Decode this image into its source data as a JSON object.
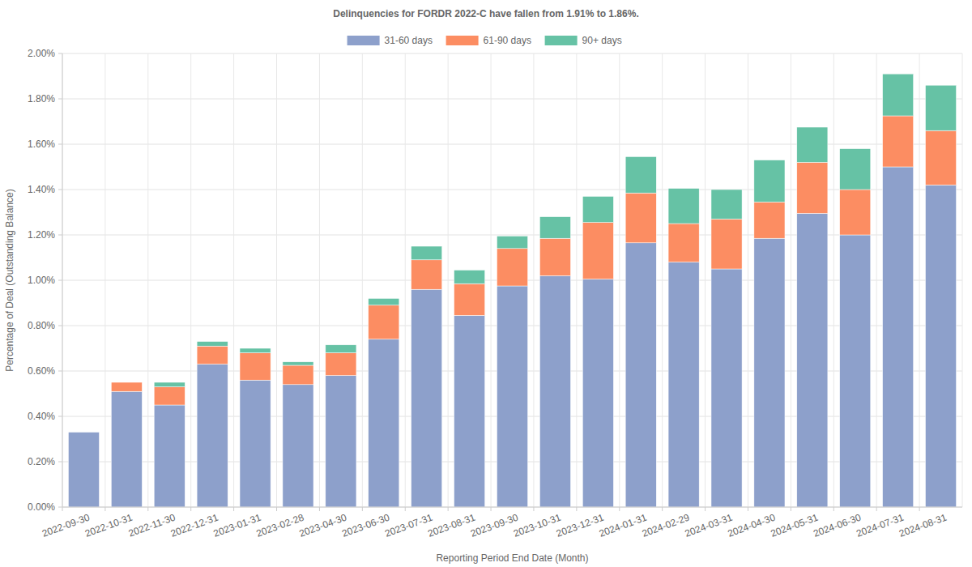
{
  "chart_data": {
    "type": "bar",
    "title": "Delinquencies for FORDR 2022-C have fallen from 1.91% to 1.86%.",
    "x_label": "Reporting Period End Date (Month)",
    "y_label": "Percentage of Deal (Outstanding Balance)",
    "categories": [
      "2022-09-30",
      "2022-10-31",
      "2022-11-30",
      "2022-12-31",
      "2023-01-31",
      "2023-02-28",
      "2023-04-30",
      "2023-06-30",
      "2023-07-31",
      "2023-08-31",
      "2023-09-30",
      "2023-10-31",
      "2023-12-31",
      "2024-01-31",
      "2024-02-29",
      "2024-03-31",
      "2024-04-30",
      "2024-05-31",
      "2024-06-30",
      "2024-07-31",
      "2024-08-31"
    ],
    "series": [
      {
        "name": "31-60 days",
        "color": "#8da0cb",
        "values": [
          0.33,
          0.51,
          0.45,
          0.63,
          0.56,
          0.54,
          0.58,
          0.74,
          0.96,
          0.845,
          0.975,
          1.02,
          1.005,
          1.165,
          1.08,
          1.05,
          1.185,
          1.295,
          1.2,
          1.5,
          1.42
        ]
      },
      {
        "name": "61-90 days",
        "color": "#fc8d62",
        "values": [
          0,
          0.04,
          0.08,
          0.08,
          0.12,
          0.085,
          0.1,
          0.15,
          0.13,
          0.14,
          0.165,
          0.165,
          0.25,
          0.22,
          0.17,
          0.22,
          0.16,
          0.225,
          0.2,
          0.225,
          0.24
        ]
      },
      {
        "name": "90+ days",
        "color": "#66c2a5",
        "values": [
          0,
          0,
          0.02,
          0.02,
          0.02,
          0.015,
          0.035,
          0.03,
          0.06,
          0.06,
          0.055,
          0.095,
          0.115,
          0.16,
          0.155,
          0.13,
          0.185,
          0.155,
          0.18,
          0.185,
          0.2
        ]
      }
    ],
    "stacked": true,
    "ylim": [
      0,
      2
    ],
    "yticks": [
      {
        "value": 0,
        "label": "0.00%"
      },
      {
        "value": 0.2,
        "label": "0.20%"
      },
      {
        "value": 0.4,
        "label": "0.40%"
      },
      {
        "value": 0.6,
        "label": "0.60%"
      },
      {
        "value": 0.8,
        "label": "0.80%"
      },
      {
        "value": 1,
        "label": "1.00%"
      },
      {
        "value": 1.2,
        "label": "1.20%"
      },
      {
        "value": 1.4,
        "label": "1.40%"
      },
      {
        "value": 1.6,
        "label": "1.60%"
      },
      {
        "value": 1.8,
        "label": "1.80%"
      },
      {
        "value": 2,
        "label": "2.00%"
      }
    ],
    "grid": true,
    "legend": "top"
  }
}
